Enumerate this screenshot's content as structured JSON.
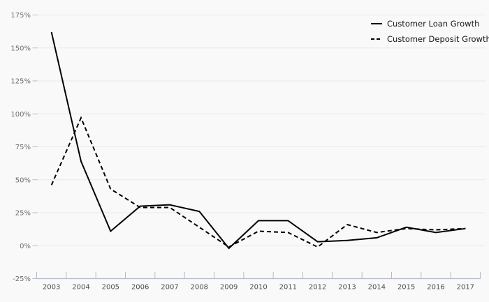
{
  "chart_data": {
    "type": "line",
    "title": "",
    "units": "%",
    "categories": [
      "2003",
      "2004",
      "2005",
      "2006",
      "2007",
      "2008",
      "2009",
      "2010",
      "2011",
      "2012",
      "2013",
      "2014",
      "2015",
      "2016",
      "2017"
    ],
    "series": [
      {
        "name": "Customer Loan Growth",
        "line_style": "solid",
        "values": [
          162,
          64,
          11,
          30,
          31,
          26,
          -2,
          19,
          19,
          3,
          4,
          6,
          14,
          10,
          13
        ]
      },
      {
        "name": "Customer Deposit Growth",
        "line_style": "dashed",
        "values": [
          46,
          97,
          43,
          29,
          29,
          14,
          -1,
          11,
          10,
          -1,
          16,
          10,
          13,
          12,
          13
        ]
      }
    ],
    "xlabel": "",
    "ylabel": "",
    "ylim": [
      -25,
      175
    ],
    "y_ticks": [
      {
        "value": -25,
        "label": "-25%"
      },
      {
        "value": 0,
        "label": "0%"
      },
      {
        "value": 25,
        "label": "25%"
      },
      {
        "value": 50,
        "label": "50%"
      },
      {
        "value": 75,
        "label": "75%"
      },
      {
        "value": 100,
        "label": "100%"
      },
      {
        "value": 125,
        "label": "125%"
      },
      {
        "value": 150,
        "label": "150%"
      },
      {
        "value": 175,
        "label": "175%"
      }
    ],
    "grid": true,
    "legend_position": "top-right",
    "colors": {
      "series_line": "#000000",
      "background": "#f9f9f9",
      "gridline": "#e9e9e9",
      "axis": "#b4bbc7",
      "y_tick_label": "#6e6e6e",
      "x_tick_label": "#4d4d4d",
      "legend_text": "#161616"
    }
  }
}
